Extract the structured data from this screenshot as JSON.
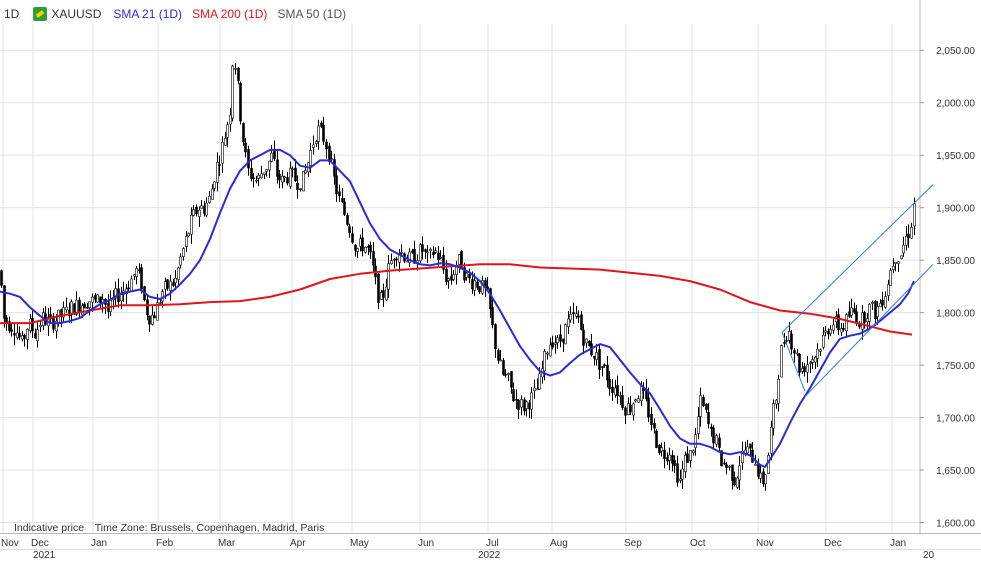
{
  "header": {
    "period": "1D",
    "symbol": "XAUUSD",
    "indicators": [
      {
        "label": "SMA 21 (1D)",
        "color": "#2b2bd6"
      },
      {
        "label": "SMA 200 (1D)",
        "color": "#e0151b"
      },
      {
        "label": "SMA 50 (1D)",
        "color": "#555555"
      }
    ]
  },
  "footer": {
    "indicative": "Indicative price",
    "timezone": "Time Zone: Brussels, Copenhagen, Madrid, Paris"
  },
  "chart_data": {
    "type": "candlestick",
    "y_ticks": [
      "1,600.00",
      "1,650.00",
      "1,700.00",
      "1,750.00",
      "1,800.00",
      "1,850.00",
      "1,900.00",
      "1,950.00",
      "2,000.00",
      "2,050.00"
    ],
    "ylim": [
      1590,
      2075
    ],
    "x_month_labels": [
      "Nov",
      "Dec",
      "Jan",
      "Feb",
      "Mar",
      "Apr",
      "May",
      "Jun",
      "Jul",
      "Aug",
      "Sep",
      "Oct",
      "Nov",
      "Dec",
      "Jan"
    ],
    "x_year_labels": [
      "2021",
      "2022",
      "20"
    ],
    "grid": true,
    "colors": {
      "up": "#ffffff",
      "down": "#000000",
      "sma21": "#2b2bd6",
      "sma200": "#e0151b",
      "trend": "#3a7bd5",
      "grid": "#e3e3e3"
    },
    "price_path": [
      [
        0,
        1840
      ],
      [
        3,
        1795
      ],
      [
        8,
        1790
      ],
      [
        15,
        1785
      ],
      [
        22,
        1770
      ],
      [
        28,
        1790
      ],
      [
        35,
        1780
      ],
      [
        42,
        1795
      ],
      [
        50,
        1790
      ],
      [
        58,
        1795
      ],
      [
        65,
        1800
      ],
      [
        72,
        1805
      ],
      [
        80,
        1808
      ],
      [
        88,
        1812
      ],
      [
        96,
        1810
      ],
      [
        103,
        1815
      ],
      [
        108,
        1800
      ],
      [
        115,
        1815
      ],
      [
        122,
        1820
      ],
      [
        130,
        1830
      ],
      [
        136,
        1840
      ],
      [
        141,
        1830
      ],
      [
        145,
        1805
      ],
      [
        150,
        1795
      ],
      [
        155,
        1800
      ],
      [
        162,
        1820
      ],
      [
        168,
        1825
      ],
      [
        175,
        1830
      ],
      [
        180,
        1850
      ],
      [
        186,
        1870
      ],
      [
        192,
        1890
      ],
      [
        198,
        1900
      ],
      [
        204,
        1900
      ],
      [
        210,
        1910
      ],
      [
        215,
        1935
      ],
      [
        220,
        1950
      ],
      [
        226,
        1975
      ],
      [
        230,
        1995
      ],
      [
        233,
        2050
      ],
      [
        236,
        2030
      ],
      [
        240,
        1990
      ],
      [
        244,
        1955
      ],
      [
        248,
        1935
      ],
      [
        252,
        1930
      ],
      [
        257,
        1925
      ],
      [
        262,
        1935
      ],
      [
        267,
        1940
      ],
      [
        272,
        1950
      ],
      [
        277,
        1930
      ],
      [
        282,
        1925
      ],
      [
        287,
        1930
      ],
      [
        292,
        1930
      ],
      [
        297,
        1925
      ],
      [
        302,
        1925
      ],
      [
        307,
        1940
      ],
      [
        312,
        1960
      ],
      [
        317,
        1975
      ],
      [
        322,
        1970
      ],
      [
        328,
        1955
      ],
      [
        333,
        1930
      ],
      [
        338,
        1910
      ],
      [
        344,
        1895
      ],
      [
        350,
        1880
      ],
      [
        356,
        1860
      ],
      [
        362,
        1865
      ],
      [
        368,
        1860
      ],
      [
        372,
        1845
      ],
      [
        376,
        1825
      ],
      [
        380,
        1810
      ],
      [
        384,
        1820
      ],
      [
        388,
        1840
      ],
      [
        393,
        1855
      ],
      [
        398,
        1860
      ],
      [
        404,
        1855
      ],
      [
        410,
        1850
      ],
      [
        416,
        1855
      ],
      [
        422,
        1860
      ],
      [
        428,
        1850
      ],
      [
        434,
        1860
      ],
      [
        440,
        1850
      ],
      [
        445,
        1835
      ],
      [
        450,
        1830
      ],
      [
        455,
        1845
      ],
      [
        460,
        1850
      ],
      [
        465,
        1835
      ],
      [
        470,
        1830
      ],
      [
        475,
        1830
      ],
      [
        480,
        1825
      ],
      [
        486,
        1820
      ],
      [
        490,
        1800
      ],
      [
        494,
        1775
      ],
      [
        498,
        1755
      ],
      [
        503,
        1740
      ],
      [
        508,
        1735
      ],
      [
        513,
        1720
      ],
      [
        518,
        1715
      ],
      [
        523,
        1710
      ],
      [
        528,
        1715
      ],
      [
        533,
        1720
      ],
      [
        538,
        1730
      ],
      [
        543,
        1750
      ],
      [
        548,
        1770
      ],
      [
        553,
        1775
      ],
      [
        558,
        1770
      ],
      [
        563,
        1780
      ],
      [
        568,
        1790
      ],
      [
        573,
        1795
      ],
      [
        578,
        1795
      ],
      [
        582,
        1780
      ],
      [
        586,
        1770
      ],
      [
        590,
        1765
      ],
      [
        595,
        1760
      ],
      [
        600,
        1750
      ],
      [
        605,
        1745
      ],
      [
        610,
        1730
      ],
      [
        615,
        1730
      ],
      [
        620,
        1720
      ],
      [
        625,
        1710
      ],
      [
        630,
        1710
      ],
      [
        635,
        1720
      ],
      [
        640,
        1725
      ],
      [
        645,
        1715
      ],
      [
        650,
        1700
      ],
      [
        655,
        1680
      ],
      [
        660,
        1670
      ],
      [
        665,
        1665
      ],
      [
        670,
        1670
      ],
      [
        675,
        1650
      ],
      [
        680,
        1640
      ],
      [
        685,
        1660
      ],
      [
        690,
        1665
      ],
      [
        695,
        1680
      ],
      [
        700,
        1715
      ],
      [
        705,
        1705
      ],
      [
        710,
        1685
      ],
      [
        715,
        1680
      ],
      [
        720,
        1660
      ],
      [
        725,
        1655
      ],
      [
        730,
        1650
      ],
      [
        735,
        1640
      ],
      [
        740,
        1660
      ],
      [
        745,
        1670
      ],
      [
        750,
        1665
      ],
      [
        755,
        1660
      ],
      [
        760,
        1640
      ],
      [
        764,
        1640
      ],
      [
        768,
        1665
      ],
      [
        772,
        1700
      ],
      [
        776,
        1720
      ],
      [
        780,
        1760
      ],
      [
        784,
        1775
      ],
      [
        788,
        1785
      ],
      [
        792,
        1770
      ],
      [
        796,
        1760
      ],
      [
        800,
        1745
      ],
      [
        805,
        1750
      ],
      [
        810,
        1755
      ],
      [
        815,
        1760
      ],
      [
        820,
        1770
      ],
      [
        825,
        1780
      ],
      [
        830,
        1790
      ],
      [
        835,
        1790
      ],
      [
        840,
        1785
      ],
      [
        845,
        1790
      ],
      [
        850,
        1800
      ],
      [
        855,
        1800
      ],
      [
        860,
        1790
      ],
      [
        865,
        1800
      ],
      [
        870,
        1805
      ],
      [
        875,
        1800
      ],
      [
        880,
        1810
      ],
      [
        885,
        1820
      ],
      [
        890,
        1840
      ],
      [
        895,
        1855
      ],
      [
        900,
        1855
      ],
      [
        905,
        1870
      ],
      [
        910,
        1880
      ],
      [
        914,
        1905
      ]
    ],
    "sma21_path": [
      [
        0,
        1820
      ],
      [
        10,
        1818
      ],
      [
        20,
        1815
      ],
      [
        30,
        1805
      ],
      [
        40,
        1797
      ],
      [
        50,
        1790
      ],
      [
        60,
        1790
      ],
      [
        70,
        1792
      ],
      [
        80,
        1795
      ],
      [
        90,
        1802
      ],
      [
        100,
        1808
      ],
      [
        110,
        1812
      ],
      [
        120,
        1818
      ],
      [
        130,
        1820
      ],
      [
        140,
        1822
      ],
      [
        150,
        1815
      ],
      [
        160,
        1813
      ],
      [
        170,
        1818
      ],
      [
        180,
        1827
      ],
      [
        190,
        1837
      ],
      [
        200,
        1850
      ],
      [
        210,
        1870
      ],
      [
        220,
        1895
      ],
      [
        230,
        1918
      ],
      [
        240,
        1935
      ],
      [
        250,
        1945
      ],
      [
        260,
        1950
      ],
      [
        270,
        1955
      ],
      [
        280,
        1955
      ],
      [
        290,
        1950
      ],
      [
        300,
        1940
      ],
      [
        310,
        1938
      ],
      [
        320,
        1945
      ],
      [
        330,
        1945
      ],
      [
        340,
        1935
      ],
      [
        350,
        1925
      ],
      [
        360,
        1905
      ],
      [
        370,
        1885
      ],
      [
        380,
        1870
      ],
      [
        390,
        1860
      ],
      [
        400,
        1855
      ],
      [
        410,
        1850
      ],
      [
        420,
        1846
      ],
      [
        430,
        1845
      ],
      [
        440,
        1847
      ],
      [
        450,
        1846
      ],
      [
        460,
        1843
      ],
      [
        470,
        1838
      ],
      [
        480,
        1830
      ],
      [
        490,
        1818
      ],
      [
        500,
        1802
      ],
      [
        510,
        1785
      ],
      [
        520,
        1768
      ],
      [
        530,
        1755
      ],
      [
        540,
        1744
      ],
      [
        550,
        1740
      ],
      [
        560,
        1743
      ],
      [
        570,
        1752
      ],
      [
        580,
        1760
      ],
      [
        590,
        1765
      ],
      [
        600,
        1770
      ],
      [
        610,
        1767
      ],
      [
        620,
        1755
      ],
      [
        630,
        1743
      ],
      [
        640,
        1732
      ],
      [
        650,
        1723
      ],
      [
        660,
        1708
      ],
      [
        670,
        1692
      ],
      [
        680,
        1680
      ],
      [
        690,
        1675
      ],
      [
        700,
        1675
      ],
      [
        710,
        1672
      ],
      [
        720,
        1667
      ],
      [
        730,
        1665
      ],
      [
        740,
        1667
      ],
      [
        750,
        1664
      ],
      [
        760,
        1655
      ],
      [
        765,
        1653
      ],
      [
        770,
        1660
      ],
      [
        780,
        1675
      ],
      [
        790,
        1695
      ],
      [
        800,
        1713
      ],
      [
        810,
        1728
      ],
      [
        820,
        1745
      ],
      [
        830,
        1762
      ],
      [
        840,
        1775
      ],
      [
        850,
        1778
      ],
      [
        860,
        1780
      ],
      [
        870,
        1785
      ],
      [
        880,
        1792
      ],
      [
        890,
        1800
      ],
      [
        900,
        1808
      ],
      [
        908,
        1818
      ],
      [
        914,
        1830
      ]
    ],
    "sma200_path": [
      [
        0,
        1790
      ],
      [
        30,
        1790
      ],
      [
        60,
        1797
      ],
      [
        90,
        1802
      ],
      [
        120,
        1807
      ],
      [
        150,
        1807
      ],
      [
        180,
        1808
      ],
      [
        210,
        1810
      ],
      [
        240,
        1811
      ],
      [
        270,
        1815
      ],
      [
        300,
        1822
      ],
      [
        330,
        1832
      ],
      [
        360,
        1837
      ],
      [
        390,
        1840
      ],
      [
        420,
        1842
      ],
      [
        450,
        1844
      ],
      [
        480,
        1846
      ],
      [
        510,
        1846
      ],
      [
        540,
        1843
      ],
      [
        570,
        1842
      ],
      [
        600,
        1841
      ],
      [
        630,
        1838
      ],
      [
        660,
        1835
      ],
      [
        690,
        1830
      ],
      [
        720,
        1822
      ],
      [
        750,
        1810
      ],
      [
        780,
        1802
      ],
      [
        810,
        1799
      ],
      [
        840,
        1794
      ],
      [
        870,
        1787
      ],
      [
        890,
        1782
      ],
      [
        912,
        1779
      ]
    ],
    "trendlines": [
      {
        "points": [
          [
            782,
            1781
          ],
          [
            933,
            1922
          ]
        ]
      },
      {
        "points": [
          [
            805,
            1720
          ],
          [
            933,
            1846
          ]
        ]
      },
      {
        "points": [
          [
            782,
            1781
          ],
          [
            805,
            1725
          ]
        ]
      }
    ]
  }
}
